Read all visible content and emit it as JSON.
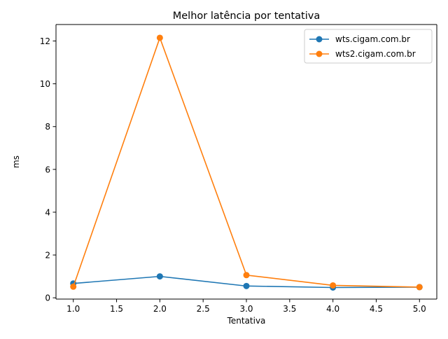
{
  "chart_data": {
    "type": "line",
    "title": "Melhor latência por tentativa",
    "xlabel": "Tentativa",
    "ylabel": "ms",
    "xlim": [
      0.8,
      5.2
    ],
    "ylim": [
      -0.06,
      12.77
    ],
    "x_ticks": [
      1.0,
      1.5,
      2.0,
      2.5,
      3.0,
      3.5,
      4.0,
      4.5,
      5.0
    ],
    "x_tick_labels": [
      "1.0",
      "1.5",
      "2.0",
      "2.5",
      "3.0",
      "3.5",
      "4.0",
      "4.5",
      "5.0"
    ],
    "y_ticks": [
      0,
      2,
      4,
      6,
      8,
      10,
      12
    ],
    "y_tick_labels": [
      "0",
      "2",
      "4",
      "6",
      "8",
      "10",
      "12"
    ],
    "grid": false,
    "legend_position": "top-right",
    "x": [
      1,
      2,
      3,
      4,
      5
    ],
    "series": [
      {
        "name": "wts.cigam.com.br",
        "color": "#1f77b4",
        "marker": "circle",
        "values": [
          0.67,
          1.0,
          0.55,
          0.48,
          0.5
        ]
      },
      {
        "name": "wts2.cigam.com.br",
        "color": "#ff7f0e",
        "marker": "circle",
        "values": [
          0.52,
          12.15,
          1.06,
          0.58,
          0.5
        ]
      }
    ]
  }
}
